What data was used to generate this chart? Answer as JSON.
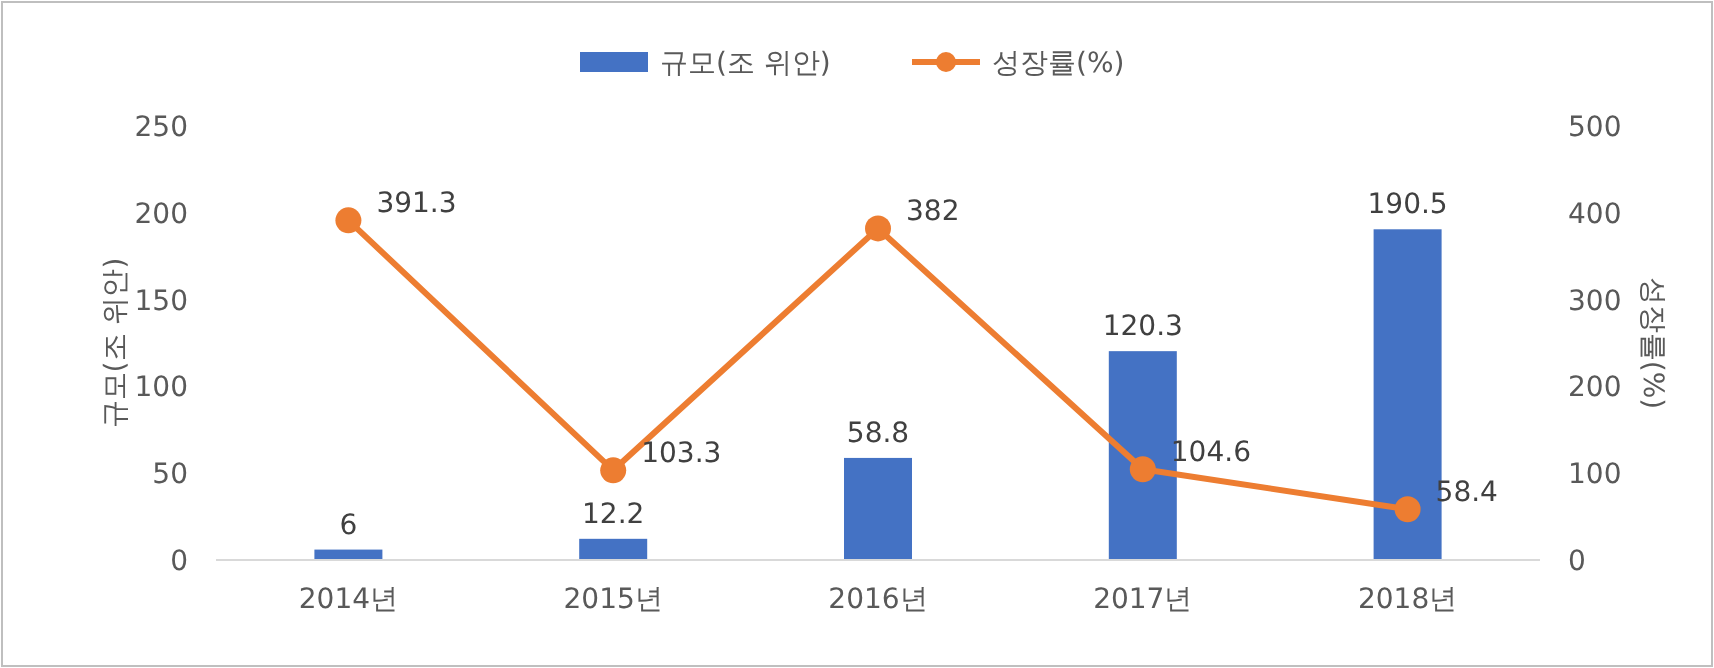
{
  "chart_data": {
    "type": "bar",
    "categories": [
      "2014년",
      "2015년",
      "2016년",
      "2017년",
      "2018년"
    ],
    "series": [
      {
        "name": "규모(조 위안)",
        "color": "#4472c4",
        "values": [
          6,
          12.2,
          58.8,
          120.3,
          190.5
        ]
      },
      {
        "name": "성장률(%)",
        "type": "line",
        "axis": "y2",
        "color": "#ed7d31",
        "values": [
          391.3,
          103.3,
          382,
          104.6,
          58.4
        ]
      }
    ],
    "ylabel": "규모(조 위안)",
    "y2label": "성장률(%)",
    "ylim": [
      0,
      250
    ],
    "yticks": [
      0,
      50,
      100,
      150,
      200,
      250
    ],
    "y2lim": [
      0,
      500
    ],
    "y2ticks": [
      0,
      100,
      200,
      300,
      400,
      500
    ],
    "data_labels": true,
    "legend": "top",
    "marker": "circle",
    "grid": false
  }
}
